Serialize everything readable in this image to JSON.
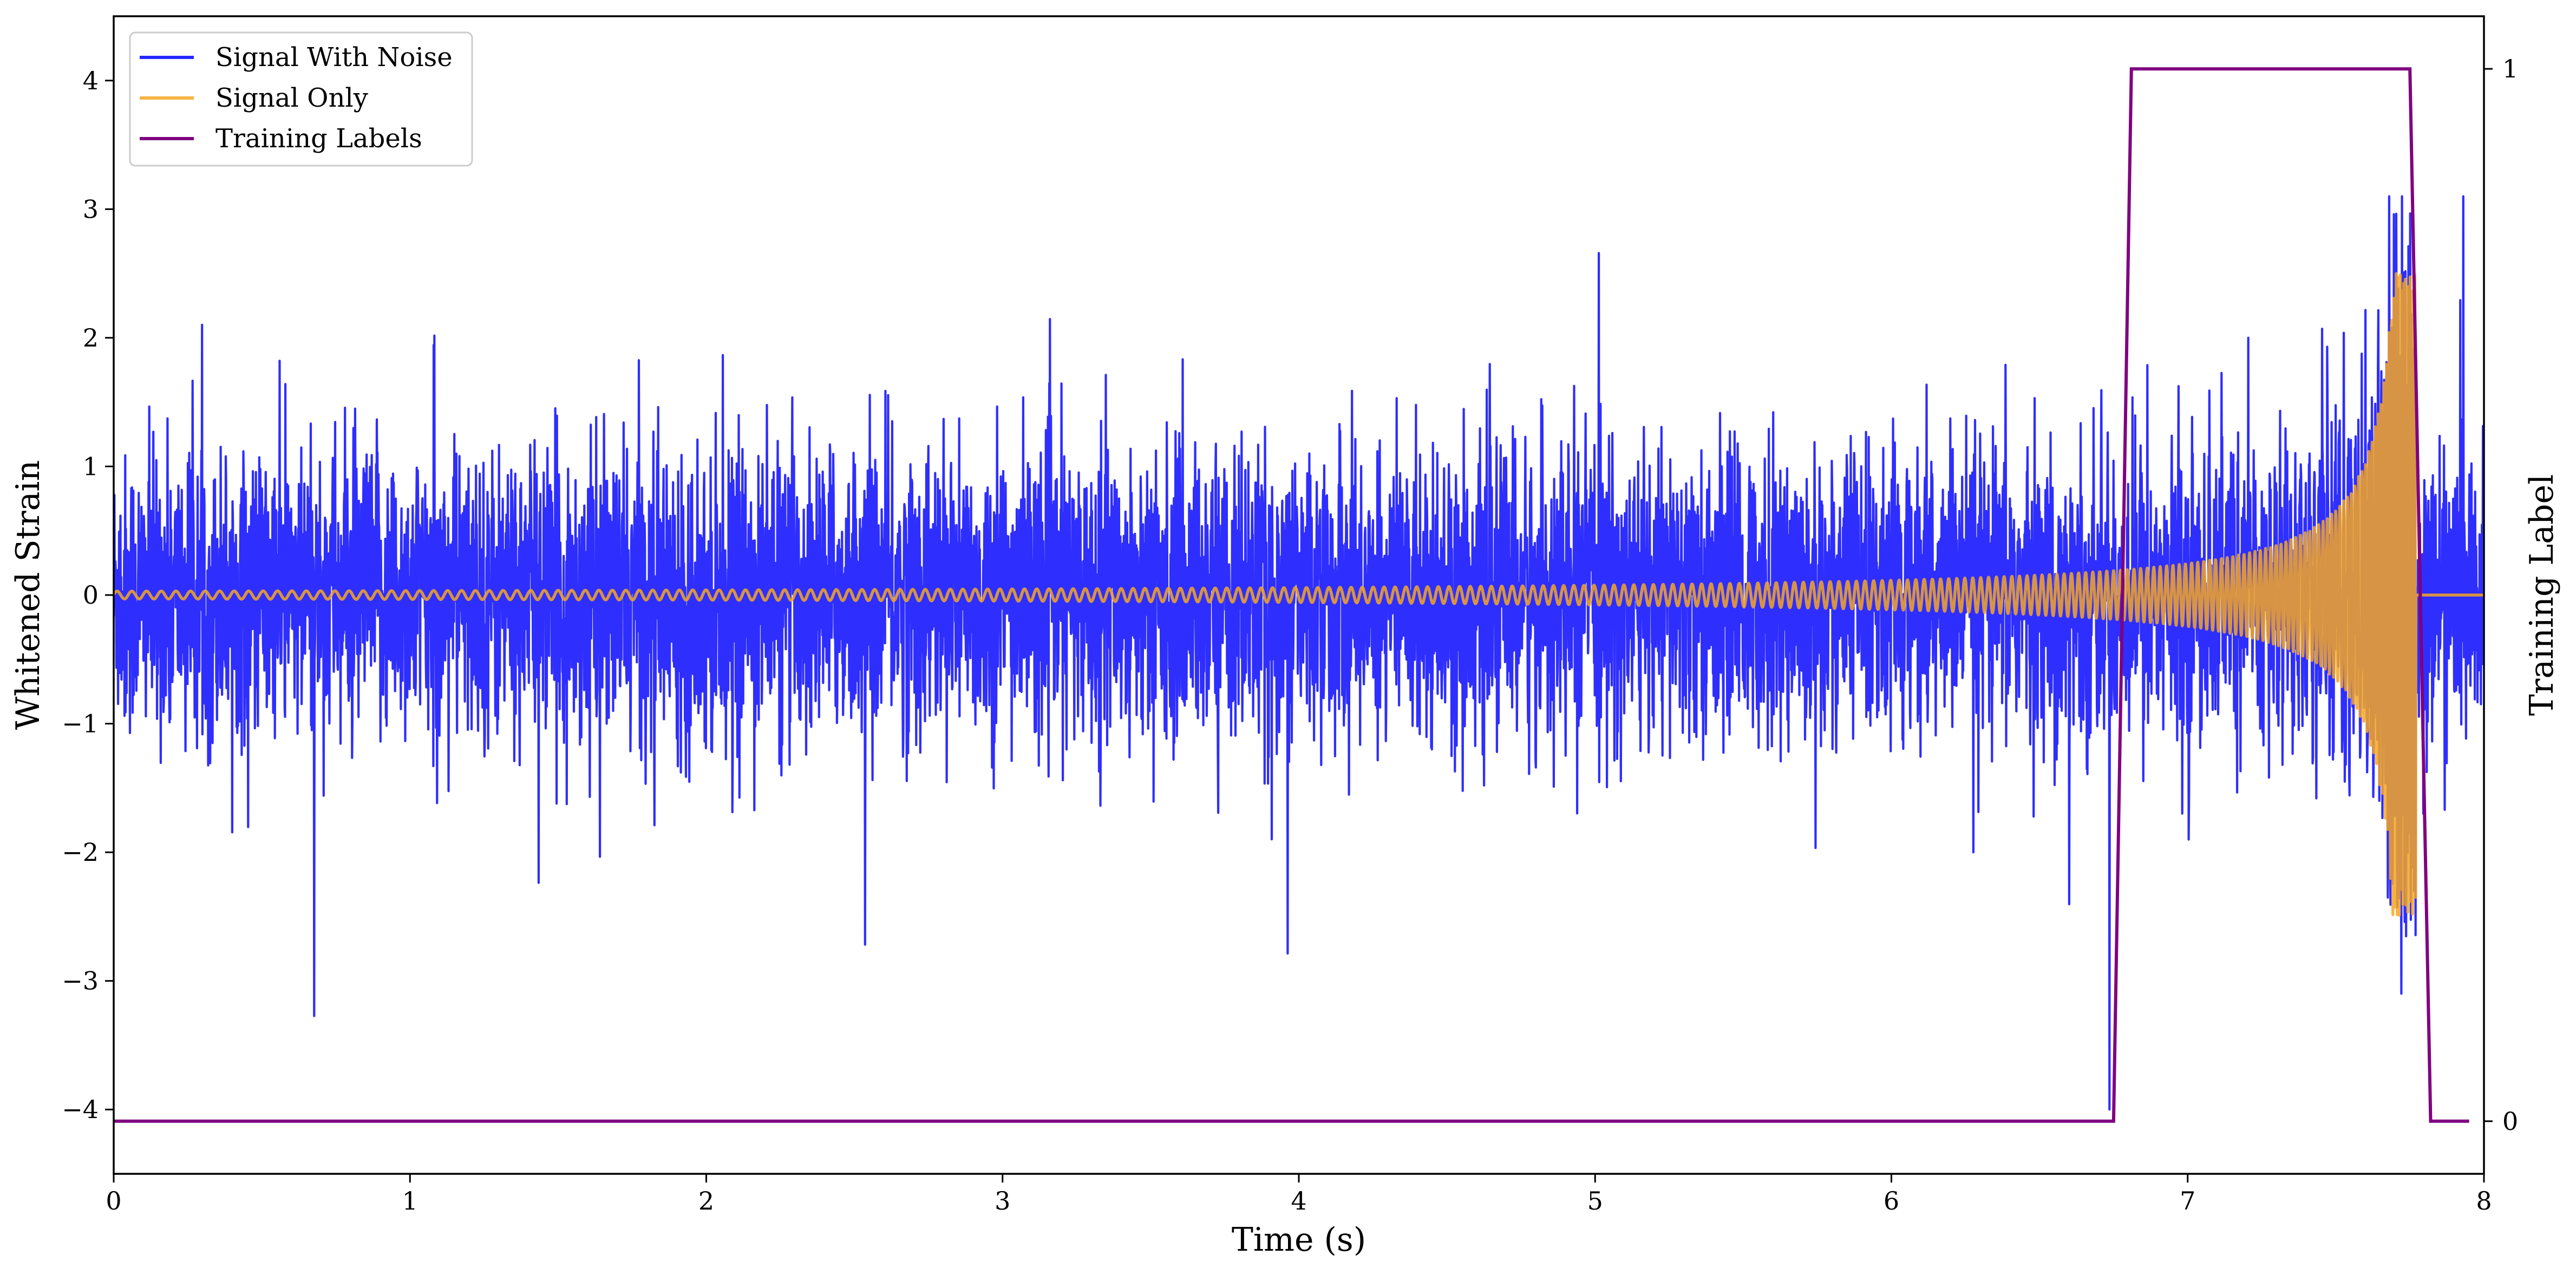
{
  "chart_data": {
    "type": "line",
    "xlabel": "Time (s)",
    "ylabel": "Whitened Strain",
    "y2label": "Training Label",
    "xlim": [
      0,
      8
    ],
    "ylim": [
      -4.5,
      4.5
    ],
    "y2lim": [
      -0.05,
      1.05
    ],
    "x_ticks": [
      "0",
      "1",
      "2",
      "3",
      "4",
      "5",
      "6",
      "7",
      "8"
    ],
    "y_ticks": [
      "−4",
      "−3",
      "−2",
      "−1",
      "0",
      "1",
      "2",
      "3",
      "4"
    ],
    "y2_ticks": [
      "0",
      "1"
    ],
    "grid": false,
    "legend_position": "top-left",
    "series": [
      {
        "name": "Signal With Noise",
        "axis": "left",
        "color": "#0000ff",
        "description_values": {
          "x_range": [
            0,
            8
          ],
          "typical_amplitude": 0.55,
          "max": 3.1,
          "min": -4.0
        }
      },
      {
        "name": "Signal Only",
        "axis": "left",
        "color": "#f5a623",
        "description_values": {
          "type": "chirp",
          "x_range": [
            0,
            7.77
          ],
          "start_amplitude": 0.03,
          "end_amplitude": 2.5,
          "start_frequency_hz": 20,
          "end_frequency_hz": 300,
          "merger_time": 7.75
        }
      },
      {
        "name": "Training Labels",
        "axis": "right",
        "color": "#800080",
        "x": [
          0,
          6.75,
          6.81,
          7.75,
          7.82,
          7.95
        ],
        "values": [
          0,
          0,
          1,
          1,
          0,
          0
        ]
      }
    ]
  }
}
